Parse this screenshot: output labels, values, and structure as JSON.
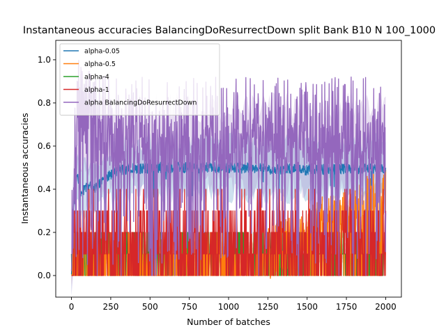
{
  "chart_data": {
    "type": "line",
    "title": "Instantaneous accuracies BalancingDoResurrectDown split Bank B10 N 100_1000",
    "xlabel": "Number of batches",
    "ylabel": "Instantaneous accuracies",
    "xlim": [
      -100,
      2100
    ],
    "ylim": [
      -0.1,
      1.09
    ],
    "xticks": [
      0,
      250,
      500,
      750,
      1000,
      1250,
      1500,
      1750,
      2000
    ],
    "yticks": [
      0.0,
      0.2,
      0.4,
      0.6,
      0.8,
      1.0
    ],
    "grid": false,
    "legend": "top-left",
    "n_batches": 2000,
    "series": [
      {
        "name": "alpha-0.05",
        "color": "#1f77b4",
        "mean": 0.49,
        "band": 0.12,
        "profile_x": [
          0,
          10,
          20,
          40,
          60,
          100,
          150,
          200,
          250,
          300,
          500,
          1000,
          1500,
          2000
        ],
        "profile_y": [
          0.0,
          0.25,
          0.42,
          0.46,
          0.38,
          0.42,
          0.4,
          0.45,
          0.47,
          0.49,
          0.5,
          0.5,
          0.49,
          0.5
        ]
      },
      {
        "name": "alpha-0.5",
        "color": "#ff7f0e",
        "mean": 0.12,
        "band": 0.05,
        "profile_x": [
          0,
          1250,
          1450,
          1600,
          1800,
          2000
        ],
        "profile_y": [
          0.1,
          0.1,
          0.17,
          0.25,
          0.3,
          0.4
        ]
      },
      {
        "name": "alpha-4",
        "color": "#2ca02c",
        "mean": 0.1,
        "band": 0.03,
        "profile_x": [
          0,
          2000
        ],
        "profile_y": [
          0.1,
          0.1
        ]
      },
      {
        "name": "alpha-1",
        "color": "#d62728",
        "mean": 0.1,
        "band": 0.04,
        "profile_x": [
          0,
          10,
          20,
          2000
        ],
        "profile_y": [
          0.0,
          0.1,
          0.12,
          0.1
        ]
      },
      {
        "name": "alpha BalancingDoResurrectDown",
        "color": "#9467bd",
        "mean": 0.6,
        "band": 0.18,
        "profile_x": [
          0,
          15,
          40,
          80,
          150,
          300,
          1000,
          2000
        ],
        "profile_y": [
          0.0,
          0.35,
          0.75,
          0.7,
          0.62,
          0.6,
          0.6,
          0.6
        ]
      }
    ]
  }
}
